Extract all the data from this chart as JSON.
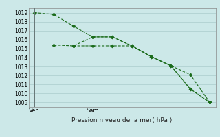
{
  "xlabel": "Pression niveau de la mer( hPa )",
  "ylim": [
    1008.5,
    1019.5
  ],
  "yticks": [
    1009,
    1010,
    1011,
    1012,
    1013,
    1014,
    1015,
    1016,
    1017,
    1018,
    1019
  ],
  "bg_color": "#cce8e8",
  "grid_color": "#aacccc",
  "line_color": "#1a6b1a",
  "line1_x": [
    0,
    1,
    2,
    3,
    4,
    5,
    6,
    7,
    8,
    9
  ],
  "line1_y": [
    1019.0,
    1018.8,
    1017.5,
    1016.3,
    1016.3,
    1015.3,
    1014.1,
    1013.1,
    1012.1,
    1009.0
  ],
  "line2_x": [
    1,
    2,
    3,
    4,
    5,
    6,
    7,
    8,
    9
  ],
  "line2_y": [
    1015.4,
    1015.3,
    1016.3,
    1016.3,
    1015.3,
    1014.1,
    1013.1,
    1010.5,
    1009.0
  ],
  "line3_x": [
    2,
    3,
    4,
    5,
    6,
    7,
    8,
    9
  ],
  "line3_y": [
    1015.3,
    1015.3,
    1015.3,
    1015.3,
    1014.1,
    1013.1,
    1010.5,
    1009.0
  ],
  "ven_x": 0,
  "sam_x": 3,
  "xlim": [
    -0.3,
    9.3
  ]
}
